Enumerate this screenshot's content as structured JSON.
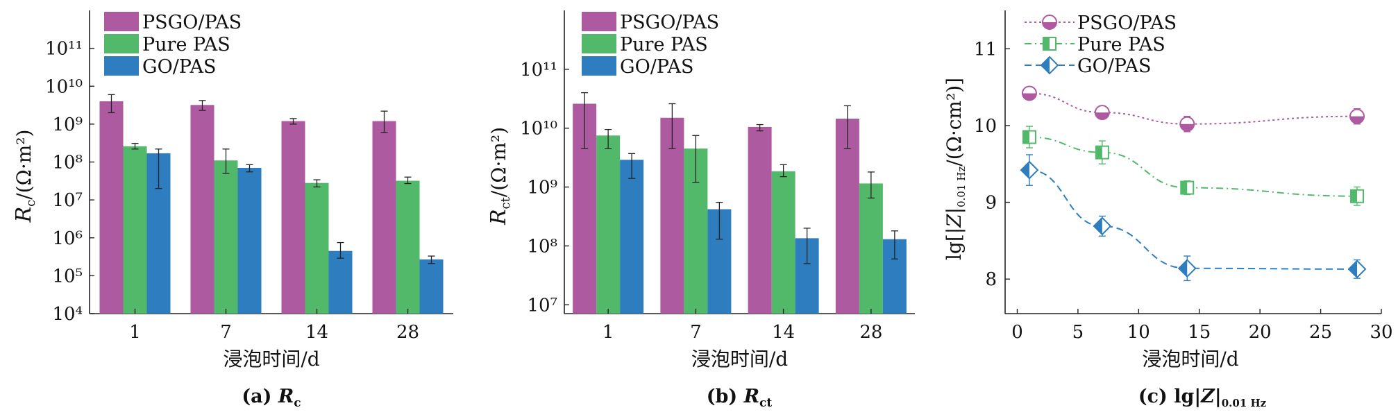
{
  "colors": {
    "PSGO/PAS": "#ad5aa0",
    "Pure PAS": "#52b96a",
    "GO/PAS": "#2e7dbf"
  },
  "chart_data": [
    {
      "type": "bar",
      "caption": "(a) Rc",
      "caption_main": "(a) ",
      "caption_var": "R",
      "caption_sub": "c",
      "xlabel": "浸泡时间/d",
      "ylabel_var": "R",
      "ylabel_sub": "c",
      "ylabel_rest": "/(Ω·m²)",
      "yscale": "log",
      "ylim_exp": [
        4,
        12
      ],
      "ytick_labels": [
        "10⁴",
        "10⁵",
        "10⁶",
        "10⁷",
        "10⁸",
        "10⁹",
        "10¹⁰",
        "10¹¹"
      ],
      "ytick_exps": [
        4,
        5,
        6,
        7,
        8,
        9,
        10,
        11
      ],
      "categories": [
        "1",
        "7",
        "14",
        "28"
      ],
      "legend": [
        "PSGO/PAS",
        "Pure PAS",
        "GO/PAS"
      ],
      "series": [
        {
          "name": "PSGO/PAS",
          "values": [
            4000000000.0,
            3200000000.0,
            1200000000.0,
            1200000000.0
          ],
          "err_low": [
            2000000000.0,
            2300000000.0,
            1000000000.0,
            600000000.0
          ],
          "err_high": [
            6000000000.0,
            4200000000.0,
            1400000000.0,
            2200000000.0
          ]
        },
        {
          "name": "Pure PAS",
          "values": [
            260000000.0,
            110000000.0,
            28000000.0,
            32000000.0
          ],
          "err_low": [
            220000000.0,
            50000000.0,
            22000000.0,
            27000000.0
          ],
          "err_high": [
            310000000.0,
            220000000.0,
            34000000.0,
            40000000.0
          ]
        },
        {
          "name": "GO/PAS",
          "values": [
            170000000.0,
            70000000.0,
            450000.0,
            270000.0
          ],
          "err_low": [
            20000000.0,
            55000000.0,
            290000.0,
            210000.0
          ],
          "err_high": [
            220000000.0,
            85000000.0,
            750000.0,
            330000.0
          ]
        }
      ]
    },
    {
      "type": "bar",
      "caption": "(b) Rct",
      "caption_main": "(b) ",
      "caption_var": "R",
      "caption_sub": "ct",
      "xlabel": "浸泡时间/d",
      "ylabel_var": "R",
      "ylabel_sub": "ct",
      "ylabel_rest": "/(Ω·m²)",
      "yscale": "log",
      "ylim_exp": [
        6.85,
        12
      ],
      "ytick_labels": [
        "10⁷",
        "10⁸",
        "10⁹",
        "10¹⁰",
        "10¹¹"
      ],
      "ytick_exps": [
        7,
        8,
        9,
        10,
        11
      ],
      "categories": [
        "1",
        "7",
        "14",
        "28"
      ],
      "legend": [
        "PSGO/PAS",
        "Pure PAS",
        "GO/PAS"
      ],
      "series": [
        {
          "name": "PSGO/PAS",
          "values": [
            26000000000.0,
            15000000000.0,
            10500000000.0,
            14500000000.0
          ],
          "err_low": [
            4500000000.0,
            4500000000.0,
            9000000000.0,
            4500000000.0
          ],
          "err_high": [
            40000000000.0,
            26000000000.0,
            11500000000.0,
            24000000000.0
          ]
        },
        {
          "name": "Pure PAS",
          "values": [
            7500000000.0,
            4500000000.0,
            1850000000.0,
            1150000000.0
          ],
          "err_low": [
            4500000000.0,
            1200000000.0,
            1500000000.0,
            650000000.0
          ],
          "err_high": [
            9500000000.0,
            7500000000.0,
            2400000000.0,
            1800000000.0
          ]
        },
        {
          "name": "GO/PAS",
          "values": [
            2900000000.0,
            420000000.0,
            135000000.0,
            130000000.0
          ],
          "err_low": [
            1400000000.0,
            130000000.0,
            50000000.0,
            60000000.0
          ],
          "err_high": [
            3700000000.0,
            550000000.0,
            200000000.0,
            180000000.0
          ]
        }
      ]
    },
    {
      "type": "line",
      "caption": "(c) lg|Z|0.01 Hz",
      "caption_main": "(c) lg|",
      "caption_var": "Z",
      "caption_rest": "|",
      "caption_sub": "0.01 Hz",
      "xlabel": "浸泡时间/d",
      "ylabel_prefix": "lg[|",
      "ylabel_var": "Z",
      "ylabel_mid": "|",
      "ylabel_sub": "0.01 Hz",
      "ylabel_rest": "/(Ω·cm²)]",
      "xlim": [
        -1,
        30
      ],
      "ylim": [
        7.55,
        11.5
      ],
      "xticks": [
        0,
        5,
        10,
        15,
        20,
        25,
        30
      ],
      "xtick_labels": [
        "0",
        "5",
        "10",
        "15",
        "20",
        "25",
        "30"
      ],
      "yticks": [
        8,
        9,
        10,
        11
      ],
      "ytick_labels": [
        "8",
        "9",
        "10",
        "11"
      ],
      "legend": [
        "PSGO/PAS",
        "Pure PAS",
        "GO/PAS"
      ],
      "series": [
        {
          "name": "PSGO/PAS",
          "x": [
            1,
            7,
            14,
            28
          ],
          "y": [
            10.42,
            10.17,
            10.02,
            10.12
          ],
          "err": [
            0.06,
            0.05,
            0.1,
            0.1
          ],
          "linestyle": "dotted",
          "marker": "half-circle"
        },
        {
          "name": "Pure PAS",
          "x": [
            1,
            7,
            14,
            28
          ],
          "y": [
            9.85,
            9.65,
            9.19,
            9.08
          ],
          "err": [
            0.14,
            0.15,
            0.09,
            0.12
          ],
          "linestyle": "dashdot",
          "marker": "half-square"
        },
        {
          "name": "GO/PAS",
          "x": [
            1,
            7,
            14,
            28
          ],
          "y": [
            9.42,
            8.69,
            8.14,
            8.13
          ],
          "err": [
            0.2,
            0.13,
            0.16,
            0.12
          ],
          "linestyle": "dashed",
          "marker": "half-diamond"
        }
      ]
    }
  ]
}
